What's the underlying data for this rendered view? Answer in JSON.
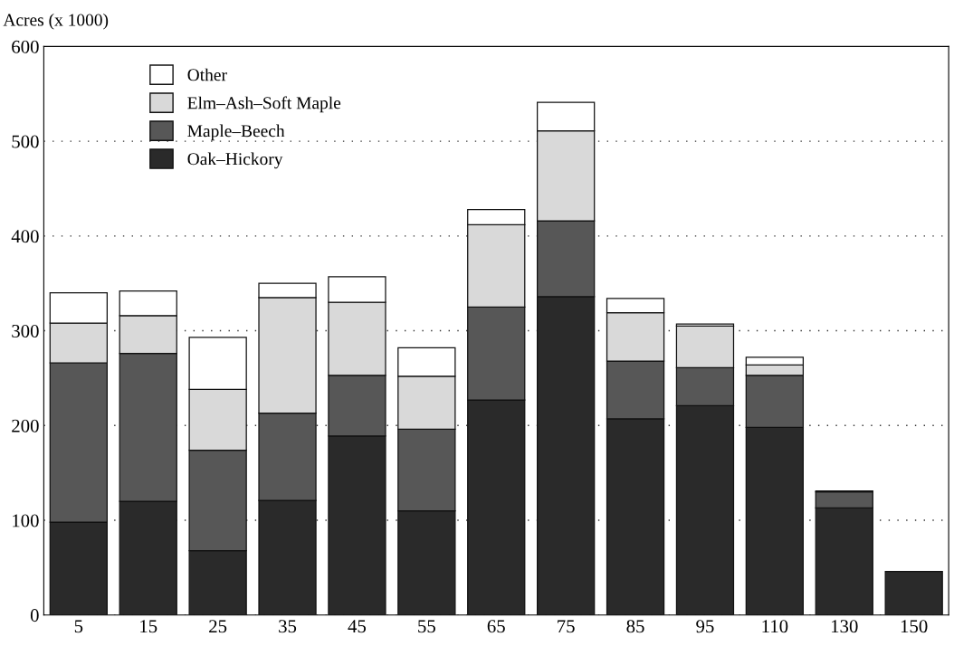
{
  "chart_data": {
    "type": "bar",
    "stacked": true,
    "ylabel": "Acres (x 1000)",
    "categories": [
      "5",
      "15",
      "25",
      "35",
      "45",
      "55",
      "65",
      "75",
      "85",
      "95",
      "110",
      "130",
      "150"
    ],
    "series": [
      {
        "name": "Oak–Hickory",
        "color": "#2a2a2a",
        "values": [
          98,
          120,
          68,
          121,
          189,
          110,
          227,
          336,
          207,
          221,
          198,
          113,
          46
        ]
      },
      {
        "name": "Maple–Beech",
        "color": "#575757",
        "values": [
          168,
          156,
          106,
          92,
          64,
          86,
          98,
          80,
          61,
          40,
          55,
          17,
          0
        ]
      },
      {
        "name": "Elm–Ash–Soft Maple",
        "color": "#d9d9d9",
        "values": [
          42,
          40,
          64,
          122,
          77,
          56,
          87,
          95,
          51,
          44,
          11,
          null,
          0
        ]
      },
      {
        "name": "Other",
        "color": "#ffffff",
        "values": [
          32,
          26,
          55,
          15,
          27,
          30,
          16,
          30,
          15,
          2,
          8,
          1,
          0
        ]
      }
    ],
    "ylim": [
      0,
      600
    ],
    "yticks": [
      0,
      100,
      200,
      300,
      400,
      500,
      600
    ],
    "grid": "y",
    "legend": "top left"
  }
}
